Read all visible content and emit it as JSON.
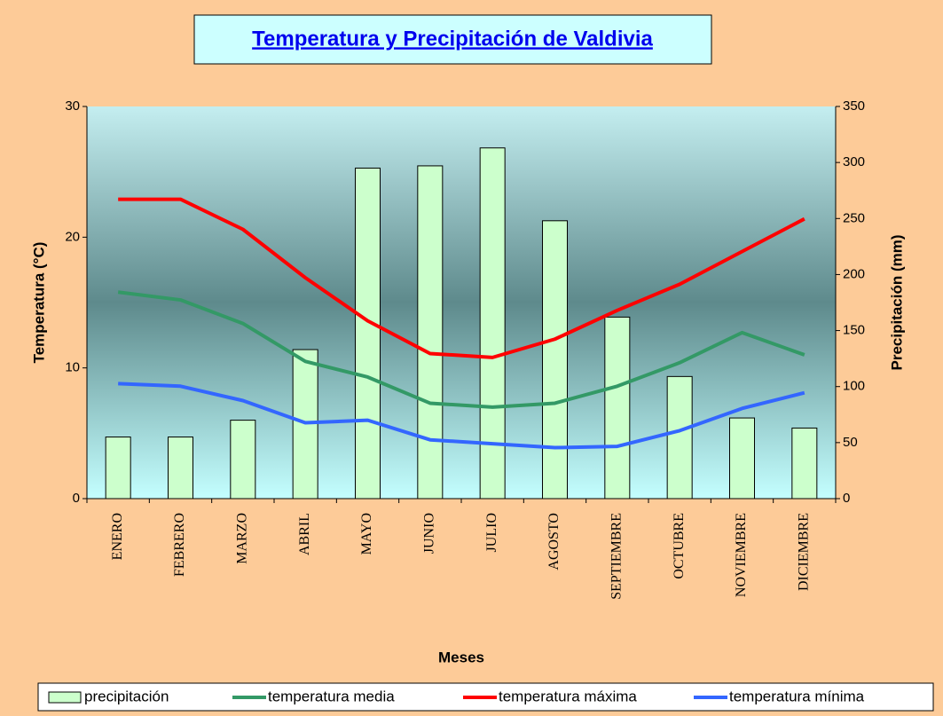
{
  "chart_data": {
    "type": "combo",
    "title": "Temperatura y Precipitación de Valdivia",
    "x_label": "Meses",
    "y_label": "Temperatura (°C)",
    "y2_label": "Precipitación (mm)",
    "categories": [
      "ENERO",
      "FEBRERO",
      "MARZO",
      "ABRIL",
      "MAYO",
      "JUNIO",
      "JULIO",
      "AGOSTO",
      "SEPTIEMBRE",
      "OCTUBRE",
      "NOVIEMBRE",
      "DICIEMBRE"
    ],
    "ylim": [
      0,
      30
    ],
    "yticks": [
      0,
      10,
      20,
      30
    ],
    "y2lim": [
      0,
      350
    ],
    "y2ticks": [
      0,
      50,
      100,
      150,
      200,
      250,
      300,
      350
    ],
    "series": [
      {
        "name": "precipitación",
        "type": "bar",
        "axis": "y2",
        "color": "#ccffcc",
        "values": [
          55,
          55,
          70,
          133,
          295,
          297,
          313,
          248,
          162,
          109,
          72,
          63
        ]
      },
      {
        "name": "temperatura media",
        "type": "line",
        "color": "#339966",
        "values": [
          15.8,
          15.2,
          13.4,
          10.5,
          9.3,
          7.3,
          7.0,
          7.3,
          8.6,
          10.4,
          12.7,
          11.0
        ]
      },
      {
        "name": "temperatura máxima",
        "type": "line",
        "color": "#ff0000",
        "values": [
          22.9,
          22.9,
          20.6,
          16.9,
          13.6,
          11.1,
          10.8,
          12.2,
          14.4,
          16.4,
          18.9,
          21.4
        ]
      },
      {
        "name": "temperatura mínima",
        "type": "line",
        "color": "#3366ff",
        "values": [
          8.8,
          8.6,
          7.5,
          5.8,
          6.0,
          4.5,
          4.2,
          3.9,
          4.0,
          5.2,
          6.9,
          8.1
        ]
      }
    ]
  }
}
